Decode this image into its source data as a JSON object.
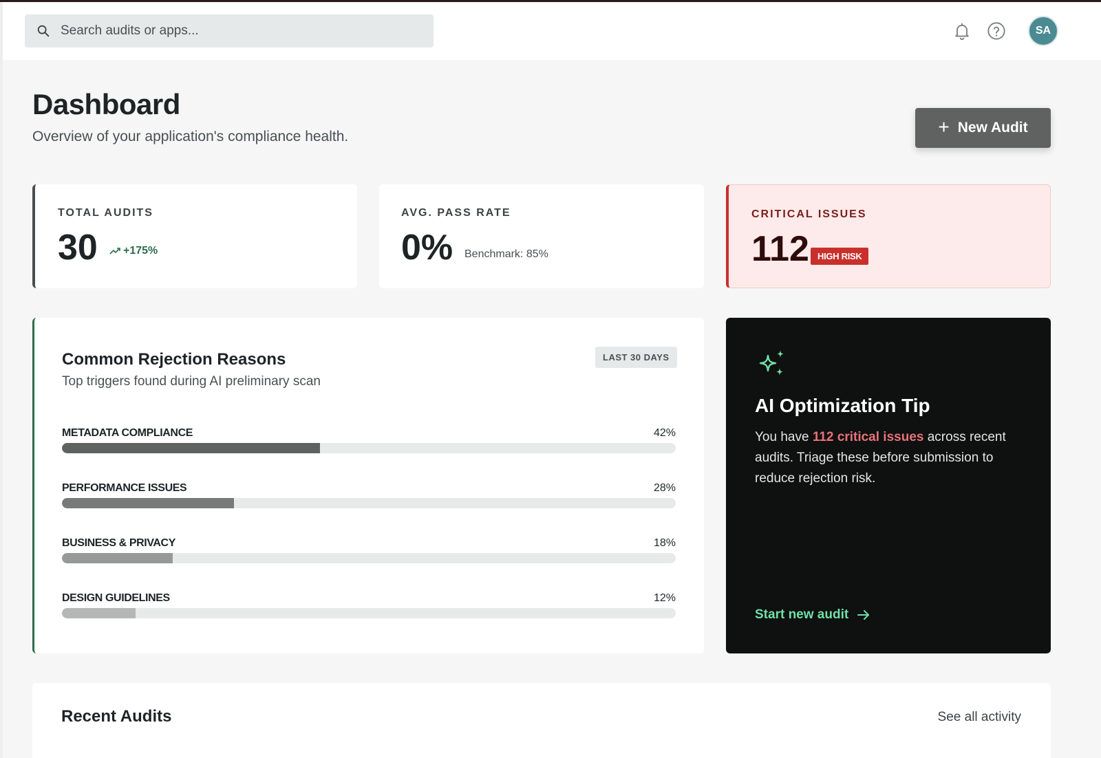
{
  "header": {
    "search_placeholder": "Search audits or apps...",
    "avatar_initials": "SA"
  },
  "page": {
    "title": "Dashboard",
    "subtitle": "Overview of your application's compliance health.",
    "new_audit_label": "New Audit"
  },
  "stats": {
    "total_audits": {
      "label": "TOTAL AUDITS",
      "value": "30",
      "trend": "+175%"
    },
    "pass_rate": {
      "label": "AVG. PASS RATE",
      "value": "0%",
      "benchmark": "Benchmark: 85%"
    },
    "critical": {
      "label": "CRITICAL ISSUES",
      "value": "112",
      "badge": "HIGH RISK"
    }
  },
  "rejection_reasons": {
    "title": "Common Rejection Reasons",
    "subtitle": "Top triggers found during AI preliminary scan",
    "range": "LAST 30 DAYS",
    "items": [
      {
        "label": "METADATA COMPLIANCE",
        "pct_label": "42%",
        "fraction": 0.42,
        "color": "#606262"
      },
      {
        "label": "PERFORMANCE ISSUES",
        "pct_label": "28%",
        "fraction": 0.28,
        "color": "#787a7a"
      },
      {
        "label": "BUSINESS & PRIVACY",
        "pct_label": "18%",
        "fraction": 0.18,
        "color": "#979999"
      },
      {
        "label": "DESIGN GUIDELINES",
        "pct_label": "12%",
        "fraction": 0.12,
        "color": "#b5b7b7"
      }
    ]
  },
  "ai_tip": {
    "title": "AI Optimization Tip",
    "body_prefix": "You have ",
    "body_highlight": "112 critical issues",
    "body_suffix": " across recent audits. Triage these before submission to reduce rejection risk.",
    "cta": "Start new audit",
    "accent_color": "#6fe0a6",
    "highlight_color": "#e8727a"
  },
  "recent_audits": {
    "title": "Recent Audits",
    "link": "See all activity"
  }
}
